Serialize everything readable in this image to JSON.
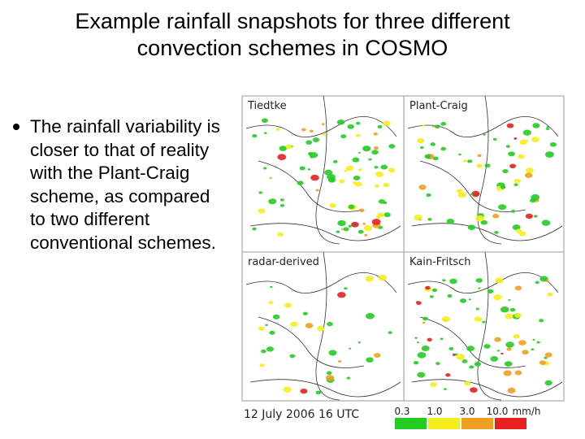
{
  "title": "Example rainfall snapshots for three different convection schemes in COSMO",
  "bullet": "The rainfall variability is closer to that of reality with the Plant-Craig scheme, as compared to two different conventional schemes.",
  "figure": {
    "panels": [
      "Tiedtke",
      "Plant-Craig",
      "radar-derived",
      "Kain-Fritsch"
    ],
    "caption": "12 July 2006 16 UTC",
    "legend": {
      "labels": [
        "0.3",
        "1.0",
        "3.0",
        "10.0"
      ],
      "unit": "mm/h",
      "colors": [
        "#22cc22",
        "#f5ee1a",
        "#f0a020",
        "#e82020"
      ]
    }
  }
}
